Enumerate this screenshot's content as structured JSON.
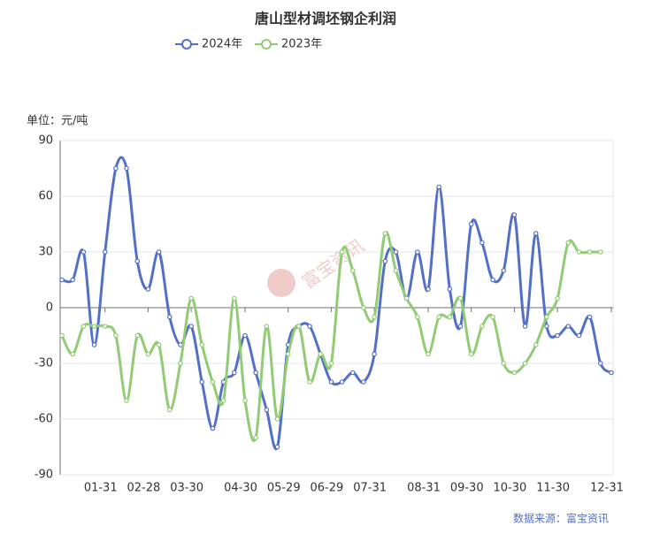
{
  "chart_data": {
    "type": "line",
    "title": "唐山型材调坯钢企利润",
    "y_label": "单位：元/吨",
    "source": "数据来源：富宝资讯",
    "watermark": "富宝资讯",
    "categories": [
      null,
      null,
      null,
      null,
      "01-31",
      null,
      null,
      null,
      "02-28",
      null,
      null,
      null,
      "03-30",
      null,
      null,
      null,
      null,
      "04-30",
      null,
      null,
      null,
      "05-29",
      null,
      null,
      null,
      "06-29",
      null,
      null,
      null,
      "07-31",
      null,
      null,
      null,
      null,
      "08-31",
      null,
      null,
      null,
      "09-30",
      null,
      null,
      null,
      "10-30",
      null,
      null,
      null,
      "11-30",
      null,
      null,
      null,
      null,
      "12-31"
    ],
    "series": [
      {
        "name": "2024年",
        "color": "#5470c6",
        "values": [
          15,
          15,
          30,
          -20,
          30,
          75,
          75,
          25,
          10,
          30,
          -5,
          -20,
          -10,
          -40,
          -65,
          -40,
          -35,
          -15,
          -35,
          -55,
          -75,
          -20,
          -10,
          -10,
          -25,
          -40,
          -40,
          -35,
          -40,
          -25,
          25,
          30,
          5,
          30,
          10,
          65,
          10,
          -10,
          45,
          35,
          15,
          20,
          50,
          -10,
          40,
          -10,
          -15,
          -10,
          -15,
          -5,
          -30,
          -35
        ]
      },
      {
        "name": "2023年",
        "color": "#91cc75",
        "values": [
          -15,
          -25,
          -10,
          -10,
          -10,
          -15,
          -50,
          -15,
          -25,
          -20,
          -55,
          -30,
          5,
          -20,
          -40,
          -50,
          5,
          -50,
          -70,
          -10,
          -60,
          -25,
          -10,
          -40,
          -25,
          -30,
          30,
          20,
          0,
          -5,
          40,
          20,
          5,
          -5,
          -25,
          -5,
          -5,
          5,
          -25,
          -10,
          -5,
          -30,
          -35,
          -30,
          -20,
          -5,
          5,
          35,
          30,
          30,
          30,
          null
        ]
      }
    ],
    "ylim": [
      -90,
      90
    ],
    "yticks": [
      -90,
      -60,
      -30,
      0,
      30,
      60,
      90
    ],
    "grid": true
  }
}
